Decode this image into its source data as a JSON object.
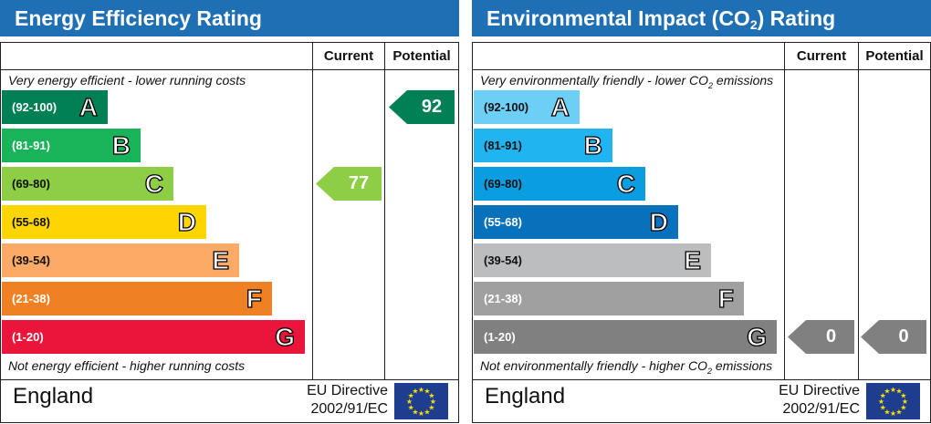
{
  "energy": {
    "title": "Energy Efficiency Rating",
    "col_current": "Current",
    "col_potential": "Potential",
    "top_note": "Very energy efficient - lower running costs",
    "bottom_note": "Not energy efficient - higher running costs",
    "bands": [
      {
        "range": "(92-100)",
        "letter": "A",
        "color": "#008054"
      },
      {
        "range": "(81-91)",
        "letter": "B",
        "color": "#19b459"
      },
      {
        "range": "(69-80)",
        "letter": "C",
        "color": "#8dce46"
      },
      {
        "range": "(55-68)",
        "letter": "D",
        "color": "#ffd500"
      },
      {
        "range": "(39-54)",
        "letter": "E",
        "color": "#fcaa65"
      },
      {
        "range": "(21-38)",
        "letter": "F",
        "color": "#ef8023"
      },
      {
        "range": "(1-20)",
        "letter": "G",
        "color": "#e9153b"
      }
    ],
    "current": {
      "value": "77",
      "band": "C",
      "color": "#8dce46"
    },
    "potential": {
      "value": "92",
      "band": "A",
      "color": "#008054"
    },
    "country": "England",
    "directive_line1": "EU Directive",
    "directive_line2": "2002/91/EC"
  },
  "environment": {
    "title_pre": "Environmental Impact (CO",
    "title_sub": "2",
    "title_post": ") Rating",
    "col_current": "Current",
    "col_potential": "Potential",
    "top_note_pre": "Very environmentally friendly - lower CO",
    "top_note_sub": "2",
    "top_note_post": " emissions",
    "bottom_note_pre": "Not environmentally friendly - higher CO",
    "bottom_note_sub": "2",
    "bottom_note_post": " emissions",
    "bands": [
      {
        "range": "(92-100)",
        "letter": "A",
        "color": "#6dcff6"
      },
      {
        "range": "(81-91)",
        "letter": "B",
        "color": "#20b4f1"
      },
      {
        "range": "(69-80)",
        "letter": "C",
        "color": "#0a9ee0"
      },
      {
        "range": "(55-68)",
        "letter": "D",
        "color": "#0771bb"
      },
      {
        "range": "(39-54)",
        "letter": "E",
        "color": "#bcbdbf"
      },
      {
        "range": "(21-38)",
        "letter": "F",
        "color": "#a0a0a0"
      },
      {
        "range": "(1-20)",
        "letter": "G",
        "color": "#808080"
      }
    ],
    "current": {
      "value": "0",
      "band": "G",
      "color": "#808080"
    },
    "potential": {
      "value": "0",
      "band": "G",
      "color": "#808080"
    },
    "country": "England",
    "directive_line1": "EU Directive",
    "directive_line2": "2002/91/EC"
  }
}
